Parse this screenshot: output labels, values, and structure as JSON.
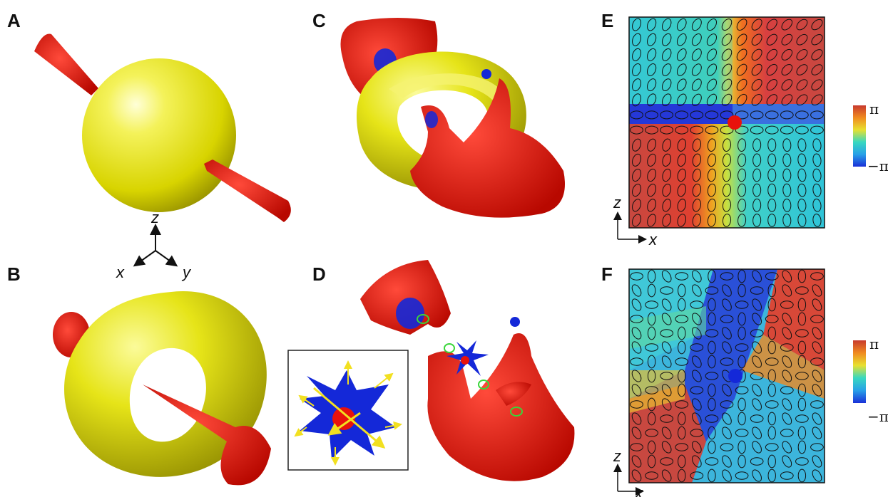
{
  "panels": {
    "a": {
      "label": "A"
    },
    "b": {
      "label": "B"
    },
    "c": {
      "label": "C"
    },
    "d": {
      "label": "D"
    },
    "e": {
      "label": "E",
      "axis_vertical": "z",
      "axis_horizontal": "x"
    },
    "f": {
      "label": "F",
      "axis_vertical": "z",
      "axis_horizontal": "x"
    }
  },
  "axes_triad": {
    "z": "z",
    "x": "x",
    "y": "y"
  },
  "colorbar": {
    "max_label": "π",
    "min_label": "−π"
  },
  "colors": {
    "surface": "#e6e600",
    "string": "#e8120c",
    "defect": "#1428d8",
    "ring": "#39d639",
    "arrow": "#f2e020"
  },
  "icons": {
    "triad": "xyz-axes-icon",
    "inset": "defect-arrows-icon"
  }
}
